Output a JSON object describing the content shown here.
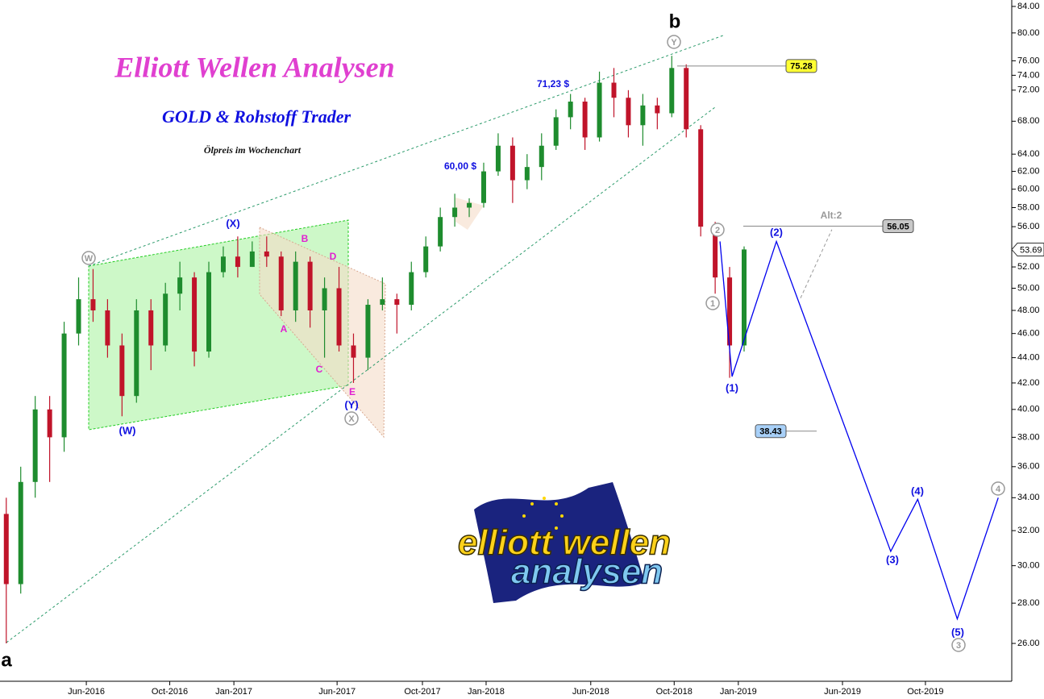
{
  "chart_data": {
    "type": "candlestick",
    "title": "Elliott Wellen Analysen",
    "subtitle": "GOLD & Rohstoff Trader",
    "caption": "Ölpreis im Wochenchart",
    "x": [
      0,
      3,
      6,
      9,
      12,
      15,
      18,
      21,
      24,
      27,
      30,
      33,
      36,
      39,
      42,
      45,
      48,
      51,
      54,
      57,
      60,
      63,
      66,
      69,
      72,
      75,
      78,
      81,
      84,
      87,
      90,
      93,
      96,
      99,
      102,
      105,
      108,
      111,
      114,
      117,
      120,
      123,
      126,
      129,
      132,
      135,
      138,
      141,
      144,
      147,
      150,
      153
    ],
    "open": [
      33,
      29,
      35,
      40,
      38,
      46,
      49,
      48,
      45,
      41,
      48,
      45,
      49.5,
      51,
      44.5,
      51.5,
      53,
      52,
      53.5,
      53,
      48,
      52.5,
      48,
      50,
      45,
      44,
      48.5,
      49,
      48.5,
      51.5,
      54,
      57,
      58,
      58.5,
      62,
      65,
      61,
      62.5,
      65,
      68.5,
      70.5,
      66,
      73,
      71,
      67.5,
      70,
      69,
      75,
      67,
      56,
      51,
      45
    ],
    "high": [
      34,
      36,
      41,
      41,
      47,
      51,
      51.8,
      49,
      46,
      49,
      49,
      50.5,
      52.5,
      51.5,
      52.5,
      54,
      55,
      54.5,
      55,
      53.5,
      53.5,
      53,
      51,
      52,
      46,
      49,
      51,
      49.5,
      52.5,
      55,
      58,
      59.5,
      59,
      63,
      66.5,
      66,
      64,
      66.5,
      69.5,
      71.5,
      71,
      74.5,
      75,
      72,
      71.5,
      71,
      76.7,
      75.5,
      67.5,
      56.5,
      52,
      54
    ],
    "low": [
      26,
      28.5,
      34,
      35,
      37,
      45,
      47,
      44,
      39.5,
      40.5,
      43,
      44.5,
      48,
      43.3,
      44,
      51,
      51,
      52,
      52,
      47.5,
      47,
      46.5,
      44,
      44.5,
      42,
      43,
      48,
      46,
      48,
      51,
      53.5,
      56,
      57,
      58,
      61.5,
      58.5,
      60,
      61,
      64.5,
      67,
      64.5,
      65.5,
      68.5,
      66,
      65,
      67,
      68.5,
      66,
      55,
      49.5,
      42.4,
      44.5
    ],
    "close": [
      29,
      35,
      40,
      38,
      46,
      49,
      48,
      45,
      41,
      48,
      45,
      49.5,
      51,
      44.5,
      51.5,
      53,
      52,
      53.5,
      53,
      48,
      52.5,
      48,
      50,
      45,
      44,
      48.5,
      49,
      48.5,
      51.5,
      54,
      57,
      58,
      58.5,
      62,
      65,
      61,
      62.5,
      65,
      68.5,
      70.5,
      66,
      73,
      71,
      67.5,
      70,
      69,
      75,
      67,
      56,
      51,
      45,
      53.7
    ],
    "up_color": "#1e8c2e",
    "down_color": "#c0142a",
    "log_scale": true,
    "xlim": [
      -1.3,
      208.5
    ],
    "xticks": [
      {
        "value": 16.6,
        "label": "Jun-2016"
      },
      {
        "value": 33.9,
        "label": "Oct-2016"
      },
      {
        "value": 47.2,
        "label": "Jan-2017"
      },
      {
        "value": 68.6,
        "label": "Jun-2017"
      },
      {
        "value": 86.3,
        "label": "Oct-2017"
      },
      {
        "value": 99.5,
        "label": "Jan-2018"
      },
      {
        "value": 121.2,
        "label": "Jun-2018"
      },
      {
        "value": 138.5,
        "label": "Oct-2018"
      },
      {
        "value": 151.8,
        "label": "Jan-2019"
      },
      {
        "value": 173.4,
        "label": "Jun-2019"
      },
      {
        "value": 190.6,
        "label": "Oct-2019"
      }
    ],
    "ylim": [
      24.25,
      85
    ],
    "yticks": [
      {
        "value": 84,
        "label": "84.00"
      },
      {
        "value": 80,
        "label": "80.00"
      },
      {
        "value": 76,
        "label": "76.00"
      },
      {
        "value": 74,
        "label": "74.00"
      },
      {
        "value": 72,
        "label": "72.00"
      },
      {
        "value": 68,
        "label": "68.00"
      },
      {
        "value": 64,
        "label": "64.00"
      },
      {
        "value": 62,
        "label": "62.00"
      },
      {
        "value": 60,
        "label": "60.00"
      },
      {
        "value": 58,
        "label": "58.00"
      },
      {
        "value": 56,
        "label": "56.00"
      },
      {
        "value": 52,
        "label": "52.00"
      },
      {
        "value": 50,
        "label": "50.00"
      },
      {
        "value": 48,
        "label": "48.00"
      },
      {
        "value": 46,
        "label": "46.00"
      },
      {
        "value": 44,
        "label": "44.00"
      },
      {
        "value": 42,
        "label": "42.00"
      },
      {
        "value": 40,
        "label": "40.00"
      },
      {
        "value": 38,
        "label": "38.00"
      },
      {
        "value": 36,
        "label": "36.00"
      },
      {
        "value": 34,
        "label": "34.00"
      },
      {
        "value": 32,
        "label": "32.00"
      },
      {
        "value": 30,
        "label": "30.00"
      },
      {
        "value": 28,
        "label": "28.00"
      },
      {
        "value": 26,
        "label": "26.00"
      }
    ],
    "last_price": 53.69,
    "levels": [
      {
        "value": 75.28,
        "color": "#ffff33"
      },
      {
        "value": 56.05,
        "color": "#c8c8c8"
      },
      {
        "value": 38.43,
        "color": "#a8d0f8"
      }
    ],
    "projection": {
      "color": "#0000ee",
      "x": [
        148,
        150.5,
        159.7,
        183.4,
        189,
        197.2,
        205.7
      ],
      "values": [
        54.5,
        42.5,
        54.5,
        30.8,
        33.9,
        27.2,
        34
      ]
    },
    "alternative": {
      "color": "#999999",
      "x": [
        164.7,
        171.2
      ],
      "values": [
        49.1,
        55.7
      ]
    },
    "annotations": [
      "71,23 $",
      "60,00 $",
      "b",
      "a",
      "(X)",
      "(W)",
      "(Y)",
      "A",
      "B",
      "C",
      "D",
      "E",
      "(1)",
      "(2)",
      "(3)",
      "(4)",
      "(5)",
      "W",
      "Y",
      "X",
      "2",
      "1",
      "3",
      "4",
      "Alt:2"
    ],
    "logo": [
      "elliott wellen",
      "analysen"
    ]
  }
}
